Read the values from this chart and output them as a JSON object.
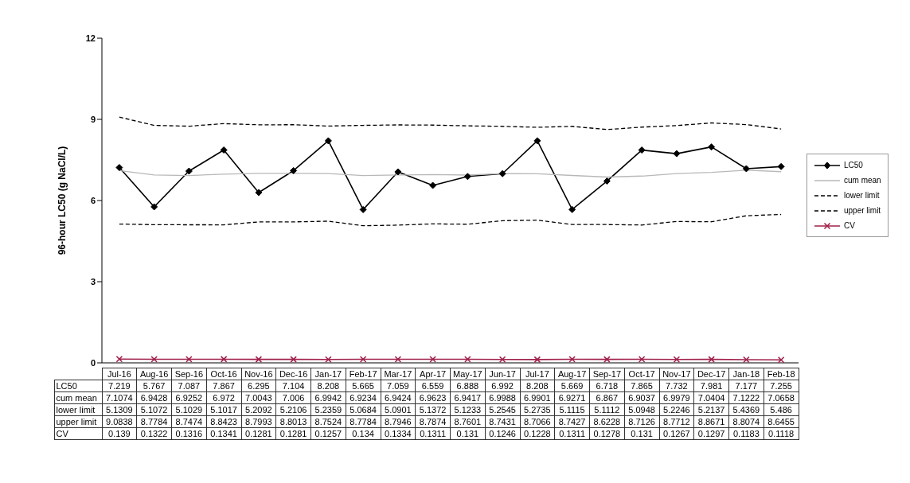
{
  "chart_data": {
    "type": "line",
    "ylabel": "96-hour LC50 (g NaCl/L)",
    "categories": [
      "Jul-16",
      "Aug-16",
      "Sep-16",
      "Oct-16",
      "Nov-16",
      "Dec-16",
      "Jan-17",
      "Feb-17",
      "Mar-17",
      "Apr-17",
      "May-17",
      "Jun-17",
      "Jul-17",
      "Aug-17",
      "Sep-17",
      "Oct-17",
      "Nov-17",
      "Dec-17",
      "Jan-18",
      "Feb-18"
    ],
    "series": [
      {
        "name": "LC50",
        "color": "#000000",
        "marker": "diamond",
        "line_style": "solid",
        "values": [
          7.219,
          5.767,
          7.087,
          7.867,
          6.295,
          7.104,
          8.208,
          5.665,
          7.059,
          6.559,
          6.888,
          6.992,
          8.208,
          5.669,
          6.718,
          7.865,
          7.732,
          7.981,
          7.177,
          7.255
        ]
      },
      {
        "name": "cum mean",
        "color": "#b8b8b8",
        "marker": "none",
        "line_style": "solid",
        "values": [
          7.1074,
          6.9428,
          6.9252,
          6.972,
          7.0043,
          7.006,
          6.9942,
          6.9234,
          6.9424,
          6.9623,
          6.9417,
          6.9988,
          6.9901,
          6.9271,
          6.867,
          6.9037,
          6.9979,
          7.0404,
          7.1222,
          7.0658
        ]
      },
      {
        "name": "lower limit",
        "color": "#000000",
        "marker": "none",
        "line_style": "dashed",
        "values": [
          5.1309,
          5.1072,
          5.1029,
          5.1017,
          5.2092,
          5.2106,
          5.2359,
          5.0684,
          5.0901,
          5.1372,
          5.1233,
          5.2545,
          5.2735,
          5.1115,
          5.1112,
          5.0948,
          5.2246,
          5.2137,
          5.4369,
          5.486
        ]
      },
      {
        "name": "upper limit",
        "color": "#000000",
        "marker": "none",
        "line_style": "dashed",
        "values": [
          9.0838,
          8.7784,
          8.7474,
          8.8423,
          8.7993,
          8.8013,
          8.7524,
          8.7784,
          8.7946,
          8.7874,
          8.7601,
          8.7431,
          8.7066,
          8.7427,
          8.6228,
          8.7126,
          8.7712,
          8.8671,
          8.8074,
          8.6455
        ]
      },
      {
        "name": "CV",
        "color": "#a0204a",
        "marker": "cross",
        "line_style": "solid",
        "values": [
          0.139,
          0.1322,
          0.1316,
          0.1341,
          0.1281,
          0.1281,
          0.1257,
          0.134,
          0.1334,
          0.1311,
          0.131,
          0.1246,
          0.1228,
          0.1311,
          0.1278,
          0.131,
          0.1267,
          0.1297,
          0.1183,
          0.1118
        ]
      }
    ],
    "ylim": [
      0,
      12
    ],
    "yticks": [
      0,
      3,
      6,
      9,
      12
    ],
    "legend": "right",
    "data_labels": true
  }
}
